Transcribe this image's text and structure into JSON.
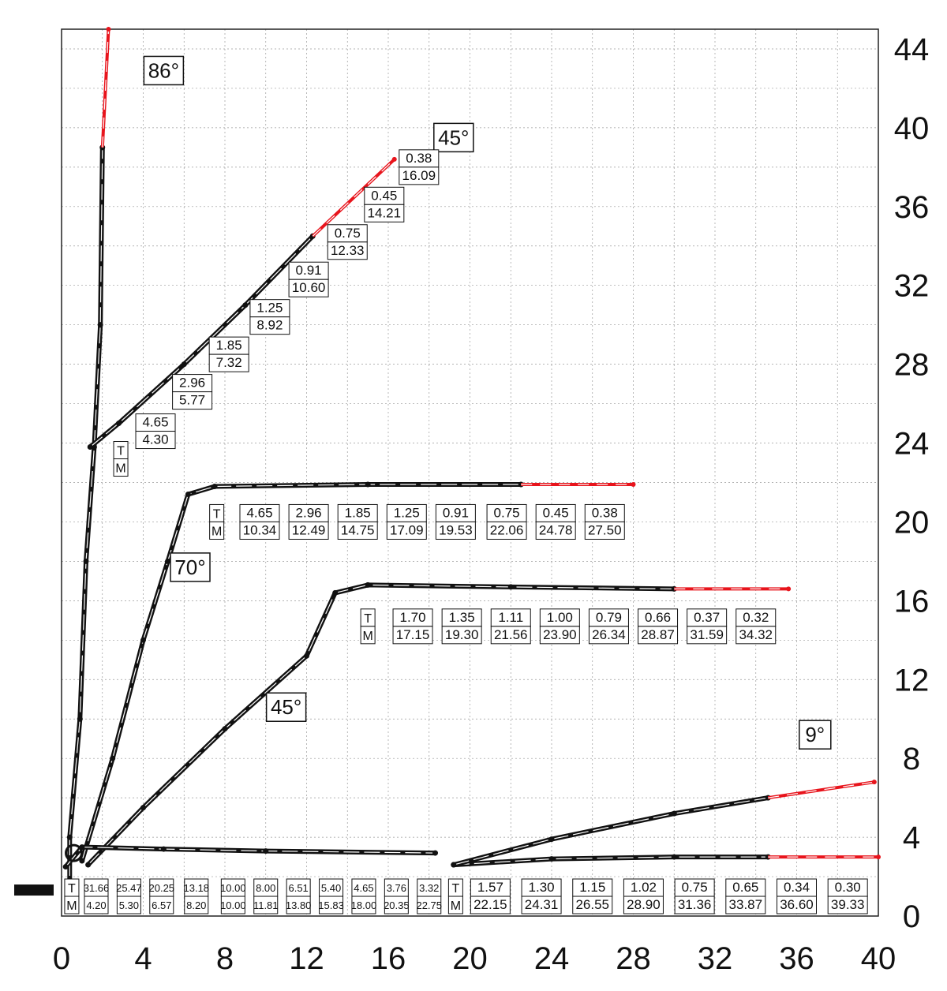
{
  "chart_data": {
    "type": "diagram",
    "x_ticks": [
      "0",
      "4",
      "8",
      "12",
      "16",
      "20",
      "24",
      "28",
      "32",
      "36",
      "40"
    ],
    "y_ticks": [
      "0",
      "4",
      "8",
      "12",
      "16",
      "20",
      "24",
      "28",
      "32",
      "36",
      "40",
      "44"
    ],
    "xlim": [
      0,
      40
    ],
    "ylim": [
      0,
      45
    ],
    "grid": true,
    "colors": {
      "boom": "#111111",
      "extension": "#e8141c",
      "grid": "#9a9a9a"
    },
    "angle_labels": [
      {
        "id": "a86",
        "text": "86°",
        "x": 5.0,
        "y": 42.9
      },
      {
        "id": "a45top",
        "text": "45°",
        "x": 19.2,
        "y": 39.5
      },
      {
        "id": "a70",
        "text": "70°",
        "x": 6.3,
        "y": 17.7
      },
      {
        "id": "a45mid",
        "text": "45°",
        "x": 11.0,
        "y": 10.6
      },
      {
        "id": "a9",
        "text": "9°",
        "x": 36.9,
        "y": 9.2
      }
    ],
    "tm_headers": [
      {
        "id": "tm45top",
        "x": 2.9,
        "y": 23.2,
        "t": "T",
        "m": "M"
      },
      {
        "id": "tm70",
        "x": 7.6,
        "y": 20.0,
        "t": "T",
        "m": "M"
      },
      {
        "id": "tm45mid",
        "x": 15.0,
        "y": 14.7,
        "t": "T",
        "m": "M"
      },
      {
        "id": "tm0",
        "x": 0.5,
        "y": 1.0,
        "t": "T",
        "m": "M"
      },
      {
        "id": "tm9",
        "x": 19.3,
        "y": 1.0,
        "t": "T",
        "m": "M"
      }
    ],
    "load_tables": [
      {
        "id": "boom45top",
        "points": [
          {
            "t": "4.65",
            "m": "4.30",
            "x": 4.6,
            "y": 24.6
          },
          {
            "t": "2.96",
            "m": "5.77",
            "x": 6.4,
            "y": 26.6
          },
          {
            "t": "1.85",
            "m": "7.32",
            "x": 8.2,
            "y": 28.5
          },
          {
            "t": "1.25",
            "m": "8.92",
            "x": 10.2,
            "y": 30.4
          },
          {
            "t": "0.91",
            "m": "10.60",
            "x": 12.1,
            "y": 32.3
          },
          {
            "t": "0.75",
            "m": "12.33",
            "x": 14.0,
            "y": 34.2
          },
          {
            "t": "0.45",
            "m": "14.21",
            "x": 15.8,
            "y": 36.1
          },
          {
            "t": "0.38",
            "m": "16.09",
            "x": 17.5,
            "y": 38.0
          }
        ]
      },
      {
        "id": "boom70",
        "points": [
          {
            "t": "4.65",
            "m": "10.34",
            "x": 9.7,
            "y": 20.0
          },
          {
            "t": "2.96",
            "m": "12.49",
            "x": 12.1,
            "y": 20.0
          },
          {
            "t": "1.85",
            "m": "14.75",
            "x": 14.5,
            "y": 20.0
          },
          {
            "t": "1.25",
            "m": "17.09",
            "x": 16.9,
            "y": 20.0
          },
          {
            "t": "0.91",
            "m": "19.53",
            "x": 19.3,
            "y": 20.0
          },
          {
            "t": "0.75",
            "m": "22.06",
            "x": 21.8,
            "y": 20.0
          },
          {
            "t": "0.45",
            "m": "24.78",
            "x": 24.2,
            "y": 20.0
          },
          {
            "t": "0.38",
            "m": "27.50",
            "x": 26.6,
            "y": 20.0
          }
        ]
      },
      {
        "id": "boom45mid",
        "points": [
          {
            "t": "1.70",
            "m": "17.15",
            "x": 17.2,
            "y": 14.7
          },
          {
            "t": "1.35",
            "m": "19.30",
            "x": 19.6,
            "y": 14.7
          },
          {
            "t": "1.11",
            "m": "21.56",
            "x": 22.0,
            "y": 14.7
          },
          {
            "t": "1.00",
            "m": "23.90",
            "x": 24.4,
            "y": 14.7
          },
          {
            "t": "0.79",
            "m": "26.34",
            "x": 26.8,
            "y": 14.7
          },
          {
            "t": "0.66",
            "m": "28.87",
            "x": 29.2,
            "y": 14.7
          },
          {
            "t": "0.37",
            "m": "31.59",
            "x": 31.6,
            "y": 14.7
          },
          {
            "t": "0.32",
            "m": "34.32",
            "x": 34.0,
            "y": 14.7
          }
        ]
      },
      {
        "id": "boom0",
        "points": [
          {
            "t": "31.66",
            "m": "4.20",
            "x": 1.7,
            "y": 1.0
          },
          {
            "t": "25.47",
            "m": "5.30",
            "x": 3.3,
            "y": 1.0
          },
          {
            "t": "20.25",
            "m": "6.57",
            "x": 4.9,
            "y": 1.0
          },
          {
            "t": "13.18",
            "m": "8.20",
            "x": 6.6,
            "y": 1.0
          },
          {
            "t": "10.00",
            "m": "10.00",
            "x": 8.4,
            "y": 1.0
          },
          {
            "t": "8.00",
            "m": "11.81",
            "x": 10.0,
            "y": 1.0
          },
          {
            "t": "6.51",
            "m": "13.80",
            "x": 11.6,
            "y": 1.0
          },
          {
            "t": "5.40",
            "m": "15.83",
            "x": 13.2,
            "y": 1.0
          },
          {
            "t": "4.65",
            "m": "18.00",
            "x": 14.8,
            "y": 1.0
          },
          {
            "t": "3.76",
            "m": "20.35",
            "x": 16.4,
            "y": 1.0
          },
          {
            "t": "3.32",
            "m": "22.75",
            "x": 18.0,
            "y": 1.0
          }
        ]
      },
      {
        "id": "boom9",
        "points": [
          {
            "t": "1.57",
            "m": "22.15",
            "x": 21.0,
            "y": 1.0
          },
          {
            "t": "1.30",
            "m": "24.31",
            "x": 23.5,
            "y": 1.0
          },
          {
            "t": "1.15",
            "m": "26.55",
            "x": 26.0,
            "y": 1.0
          },
          {
            "t": "1.02",
            "m": "28.90",
            "x": 28.5,
            "y": 1.0
          },
          {
            "t": "0.75",
            "m": "31.36",
            "x": 31.0,
            "y": 1.0
          },
          {
            "t": "0.65",
            "m": "33.87",
            "x": 33.5,
            "y": 1.0
          },
          {
            "t": "0.34",
            "m": "36.60",
            "x": 36.0,
            "y": 1.0
          },
          {
            "t": "0.30",
            "m": "39.33",
            "x": 38.5,
            "y": 1.0
          }
        ]
      }
    ],
    "booms": [
      {
        "id": "boom86",
        "black": [
          [
            0.4,
            1.0
          ],
          [
            0.4,
            4.0
          ],
          [
            0.9,
            10.0
          ],
          [
            1.2,
            18.0
          ],
          [
            1.6,
            23.8
          ],
          [
            1.9,
            30.0
          ],
          [
            2.0,
            39.0
          ]
        ],
        "red": [
          [
            2.0,
            39.0
          ],
          [
            2.3,
            45.0
          ]
        ]
      },
      {
        "id": "boom45top",
        "black": [
          [
            1.4,
            23.8
          ],
          [
            2.8,
            25.0
          ],
          [
            6.0,
            28.0
          ],
          [
            9.0,
            31.0
          ],
          [
            12.3,
            34.5
          ]
        ],
        "red": [
          [
            12.3,
            34.5
          ],
          [
            16.3,
            38.4
          ]
        ]
      },
      {
        "id": "boom70",
        "black": [
          [
            1.0,
            2.8
          ],
          [
            2.5,
            8.0
          ],
          [
            4.0,
            14.0
          ],
          [
            5.2,
            18.0
          ],
          [
            6.2,
            21.4
          ],
          [
            7.5,
            21.8
          ],
          [
            15.0,
            21.9
          ],
          [
            22.5,
            21.9
          ]
        ],
        "red": [
          [
            22.5,
            21.9
          ],
          [
            28.0,
            21.9
          ]
        ]
      },
      {
        "id": "boom45mid",
        "black": [
          [
            1.3,
            2.6
          ],
          [
            4.0,
            5.5
          ],
          [
            8.0,
            9.5
          ],
          [
            12.0,
            13.2
          ],
          [
            13.4,
            16.4
          ],
          [
            15.0,
            16.8
          ],
          [
            22.0,
            16.7
          ],
          [
            30.0,
            16.6
          ]
        ],
        "red": [
          [
            30.0,
            16.6
          ],
          [
            35.6,
            16.6
          ]
        ]
      },
      {
        "id": "boom0",
        "black": [
          [
            0.2,
            2.5
          ],
          [
            1.0,
            3.5
          ],
          [
            5.0,
            3.4
          ],
          [
            10.0,
            3.3
          ],
          [
            18.3,
            3.2
          ]
        ],
        "red": []
      },
      {
        "id": "boom9lower",
        "black": [
          [
            19.2,
            2.6
          ],
          [
            24.0,
            2.9
          ],
          [
            30.0,
            3.0
          ],
          [
            34.6,
            3.0
          ]
        ],
        "red": [
          [
            34.6,
            3.0
          ],
          [
            40.0,
            3.0
          ]
        ]
      },
      {
        "id": "boom9upper",
        "black": [
          [
            19.2,
            2.6
          ],
          [
            24.0,
            3.9
          ],
          [
            30.0,
            5.2
          ],
          [
            34.6,
            6.0
          ]
        ],
        "red": [
          [
            34.6,
            6.0
          ],
          [
            39.8,
            6.8
          ]
        ]
      }
    ]
  }
}
